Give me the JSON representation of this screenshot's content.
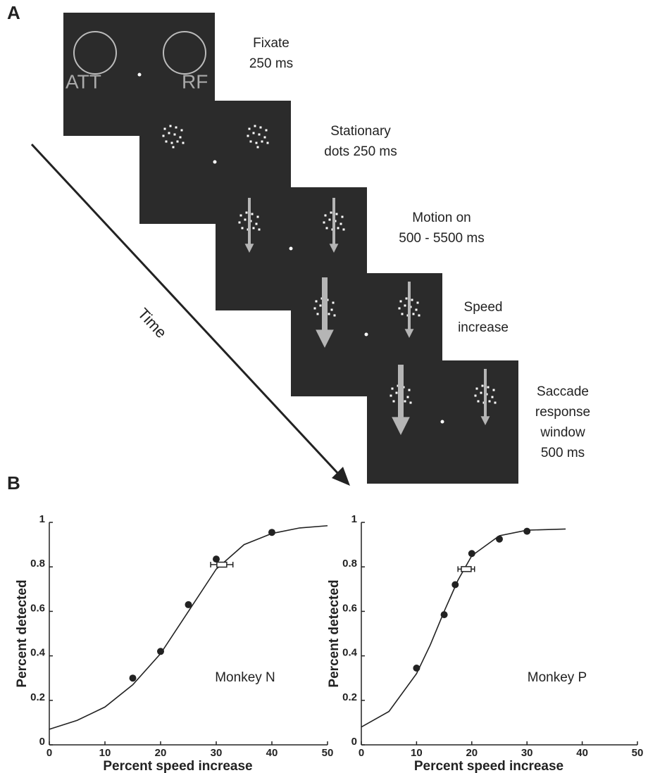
{
  "panel_a": {
    "label": "A",
    "time_label": "Time",
    "frames": [
      {
        "caption": [
          "Fixate",
          "250 ms"
        ],
        "labels": [
          "ATT",
          "RF"
        ]
      },
      {
        "caption": [
          "Stationary",
          "dots 250 ms"
        ]
      },
      {
        "caption": [
          "Motion on",
          "500 - 5500 ms"
        ]
      },
      {
        "caption": [
          "Speed",
          "increase"
        ]
      },
      {
        "caption": [
          "Saccade",
          "response",
          "window",
          "500 ms"
        ]
      }
    ]
  },
  "panel_b": {
    "label": "B"
  },
  "chart_data": [
    {
      "type": "scatter",
      "xlabel": "Percent speed increase",
      "ylabel": "Percent detected",
      "annotation": "Monkey N",
      "xlim": [
        0,
        50
      ],
      "ylim": [
        0,
        1
      ],
      "xticks": [
        0,
        10,
        20,
        30,
        40,
        50
      ],
      "yticks": [
        0,
        0.2,
        0.4,
        0.6,
        0.8,
        1
      ],
      "points": {
        "x": [
          15,
          20,
          25,
          30,
          40
        ],
        "values": [
          0.3,
          0.42,
          0.63,
          0.835,
          0.955
        ]
      },
      "fit": {
        "x": [
          0,
          5,
          10,
          15,
          20,
          25,
          30,
          35,
          40,
          45,
          50
        ],
        "values": [
          0.07,
          0.11,
          0.17,
          0.27,
          0.41,
          0.6,
          0.79,
          0.9,
          0.95,
          0.975,
          0.985
        ]
      },
      "threshold": {
        "x": 31,
        "value": 0.81,
        "xerr": 2
      }
    },
    {
      "type": "scatter",
      "xlabel": "Percent speed increase",
      "ylabel": "Percent detected",
      "annotation": "Monkey P",
      "xlim": [
        0,
        50
      ],
      "ylim": [
        0,
        1
      ],
      "xticks": [
        0,
        10,
        20,
        30,
        40,
        50
      ],
      "yticks": [
        0,
        0.2,
        0.4,
        0.6,
        0.8,
        1
      ],
      "points": {
        "x": [
          10,
          15,
          17,
          20,
          25,
          30
        ],
        "values": [
          0.345,
          0.585,
          0.72,
          0.86,
          0.925,
          0.96
        ]
      },
      "fit": {
        "x": [
          0,
          5,
          10,
          12.5,
          15,
          17.5,
          20,
          25,
          30,
          37
        ],
        "values": [
          0.08,
          0.15,
          0.32,
          0.45,
          0.6,
          0.74,
          0.85,
          0.94,
          0.965,
          0.97
        ]
      },
      "threshold": {
        "x": 19,
        "value": 0.79,
        "xerr": 1.5
      }
    }
  ]
}
